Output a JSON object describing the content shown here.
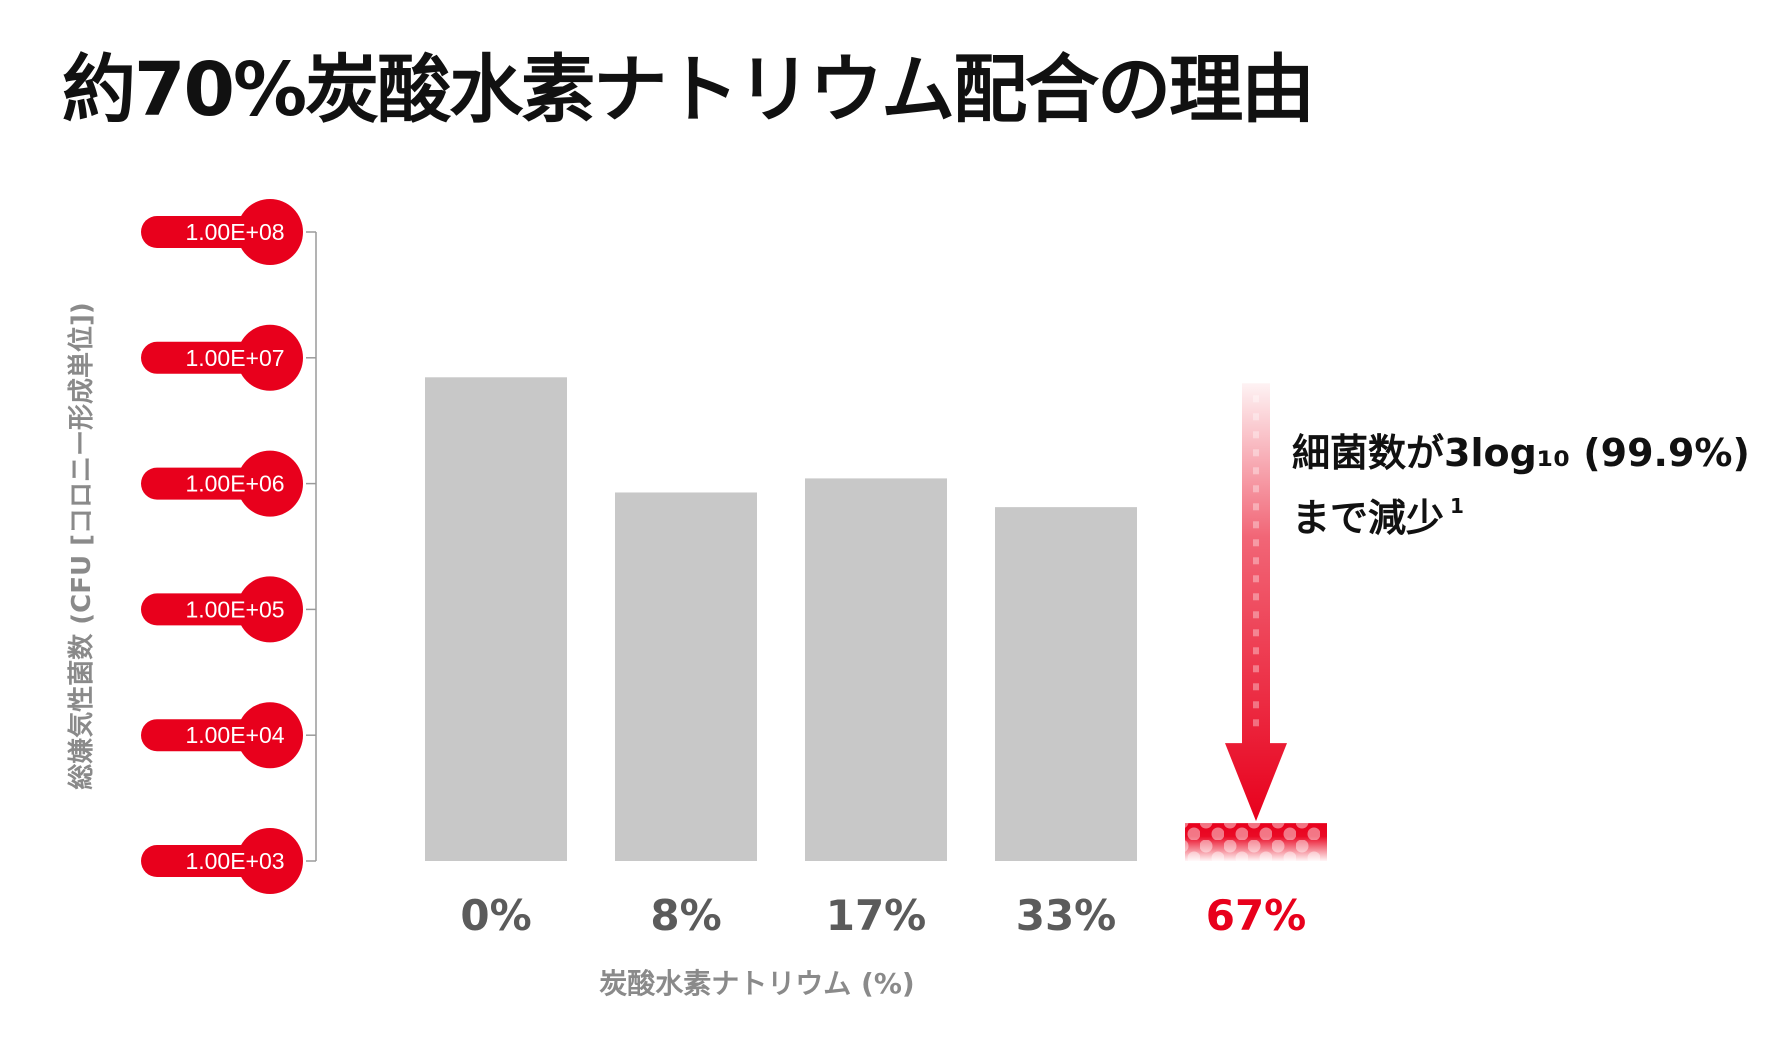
{
  "title": "約70%炭酸水素ナトリウム配合の理由",
  "annotation": {
    "line1": "細菌数が3log₁₀ (99.9%)",
    "line2": "まで減少",
    "footnote": "1"
  },
  "colors": {
    "bar": "#c8c8c8",
    "highlight": "#e8001c",
    "category_text": "#5b5b5b",
    "axis_label": "#8a8a8a"
  },
  "chart_data": {
    "type": "bar",
    "title": "",
    "xlabel": "炭酸水素ナトリウム (%)",
    "ylabel": "総嫌気性菌数 (CFU [コロニー形成単位])",
    "y_scale": "log",
    "ylim": [
      1000,
      100000000
    ],
    "yticks": [
      1000,
      10000,
      100000,
      1000000,
      10000000,
      100000000
    ],
    "ytick_labels": [
      "1.00E+03",
      "1.00E+04",
      "1.00E+05",
      "1.00E+06",
      "1.00E+07",
      "1.00E+08"
    ],
    "categories": [
      "0%",
      "8%",
      "17%",
      "33%",
      "67%"
    ],
    "values": [
      7000000,
      850000,
      1100000,
      650000,
      2000
    ],
    "highlight_category": "67%",
    "baseline_reference": 7000000,
    "grid": false,
    "legend": "none"
  }
}
